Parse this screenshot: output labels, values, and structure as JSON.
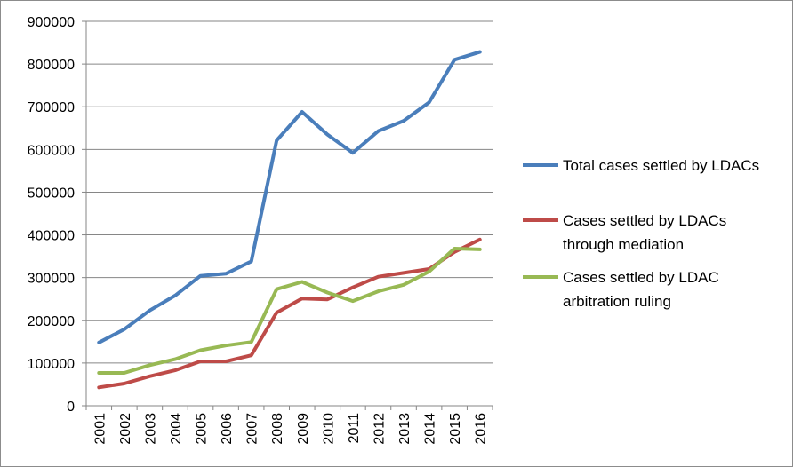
{
  "chart_data": {
    "type": "line",
    "title": "",
    "xlabel": "",
    "ylabel": "",
    "ylim": [
      0,
      900000
    ],
    "yticks": [
      0,
      100000,
      200000,
      300000,
      400000,
      500000,
      600000,
      700000,
      800000,
      900000
    ],
    "grid": "horizontal",
    "legend_position": "right",
    "categories": [
      "2001",
      "2002",
      "2003",
      "2004",
      "2005",
      "2006",
      "2007",
      "2008",
      "2009",
      "2010",
      "2011",
      "2012",
      "2013",
      "2014",
      "2015",
      "2016"
    ],
    "series": [
      {
        "name": "Total cases settled by LDACs",
        "color": "#4a7ebb",
        "values": [
          148000,
          179000,
          223000,
          258000,
          304000,
          309000,
          338000,
          621000,
          688000,
          635000,
          592000,
          643000,
          667000,
          710000,
          810000,
          828000
        ]
      },
      {
        "name": "Cases settled by LDACs through mediation",
        "color": "#be4b48",
        "values": [
          43000,
          52000,
          69000,
          83000,
          104000,
          104000,
          118000,
          218000,
          251000,
          249000,
          277000,
          302000,
          311000,
          320000,
          360000,
          389000
        ]
      },
      {
        "name": "Cases settled by LDAC arbitration ruling",
        "color": "#98b954",
        "values": [
          77000,
          77000,
          95000,
          109000,
          130000,
          141000,
          149000,
          273000,
          290000,
          265000,
          245000,
          268000,
          283000,
          314000,
          368000,
          366000
        ]
      }
    ],
    "legend": [
      {
        "lines": [
          "Total cases settled by LDACs"
        ]
      },
      {
        "lines": [
          "Cases settled by LDACs",
          "through mediation"
        ]
      },
      {
        "lines": [
          "Cases settled by LDAC",
          "arbitration ruling"
        ]
      }
    ]
  }
}
